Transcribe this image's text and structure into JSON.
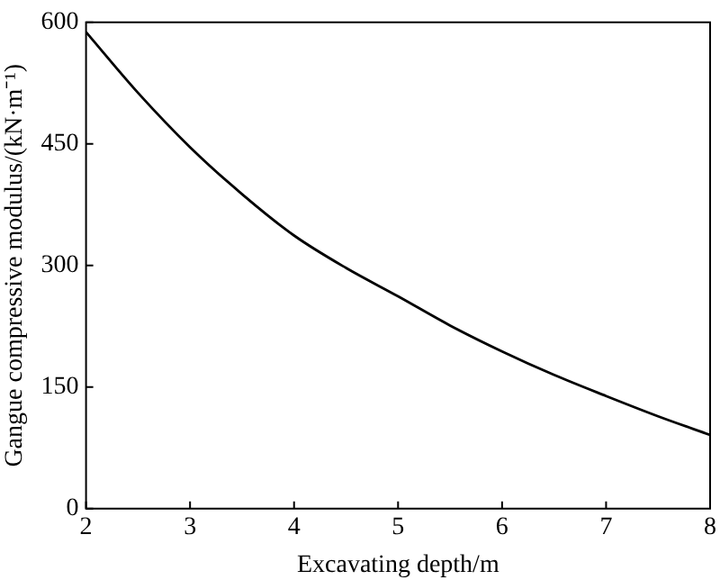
{
  "chart_data": {
    "type": "line",
    "xlabel": "Excavating depth/m",
    "ylabel": "Gangue compressive modulus/(kN·m⁻¹)",
    "x": [
      2,
      2.5,
      3,
      3.5,
      4,
      4.5,
      5,
      5.5,
      6,
      6.5,
      7,
      7.5,
      8
    ],
    "series": [
      {
        "color": "#000000",
        "values": [
          588,
          513,
          446,
          388,
          337,
          297,
          262,
          226,
          194,
          165,
          139,
          114,
          91
        ]
      }
    ],
    "xlim": [
      2,
      8
    ],
    "xticks": [
      2,
      3,
      4,
      5,
      6,
      7,
      8
    ],
    "ylim": [
      0,
      600
    ],
    "yticks": [
      0,
      150,
      300,
      450,
      600
    ],
    "grid": false,
    "legend": false,
    "marker": "none",
    "line_style": "solid"
  }
}
